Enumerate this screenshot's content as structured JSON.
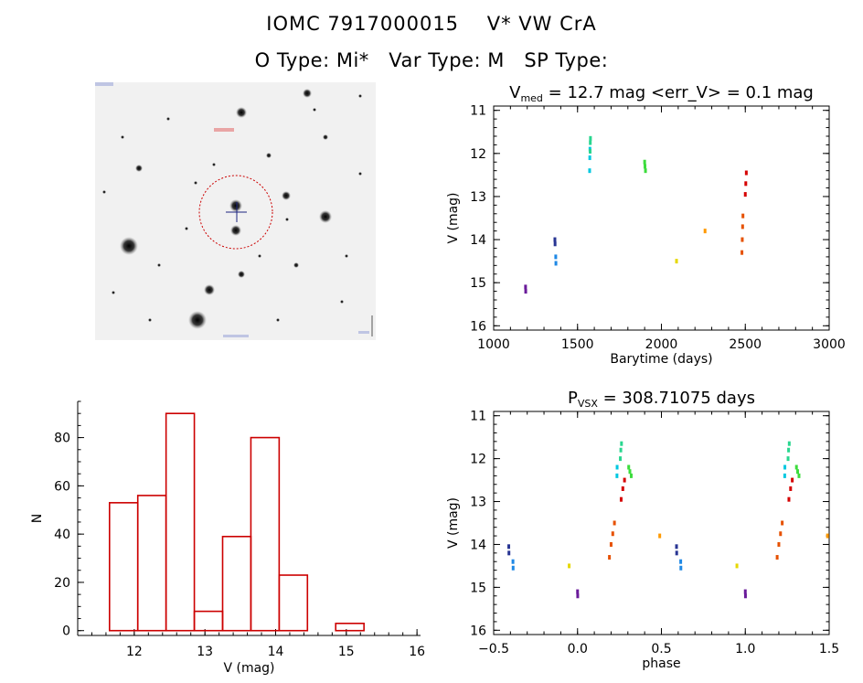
{
  "header": {
    "title_line1": "IOMC 7917000015    V* VW CrA",
    "title_line2": "O Type: Mi*   Var Type: M   SP Type:"
  },
  "image_panel": {
    "type": "sky-image",
    "colors": {
      "circle": "#cc0000",
      "cross": "#000080"
    }
  },
  "chart_data": [
    {
      "id": "lightcurve",
      "type": "scatter",
      "title_main": "V",
      "title_sub": "med",
      "title_rest": " = 12.7 mag <err_V> = 0.1 mag",
      "xlabel": "Barytime (days)",
      "ylabel": "V (mag)",
      "xlim": [
        1000,
        3000
      ],
      "ylim": [
        16.1,
        10.9
      ],
      "y_inverted": true,
      "xticks": [
        1000,
        1500,
        2000,
        2500,
        3000
      ],
      "yticks": [
        11,
        12,
        13,
        14,
        15,
        16
      ],
      "series": [
        {
          "color": "#6a1b9a",
          "points": [
            [
              1190,
              15.1
            ],
            [
              1191,
              15.2
            ]
          ]
        },
        {
          "color": "#283593",
          "points": [
            [
              1365,
              14.0
            ],
            [
              1366,
              14.1
            ]
          ]
        },
        {
          "color": "#1e88e5",
          "points": [
            [
              1370,
              14.4
            ],
            [
              1371,
              14.55
            ]
          ]
        },
        {
          "color": "#00c8e0",
          "points": [
            [
              1572,
              12.4
            ],
            [
              1573,
              12.1
            ],
            [
              1574,
              11.9
            ]
          ]
        },
        {
          "color": "#29d68f",
          "points": [
            [
              1575,
              11.95
            ],
            [
              1576,
              11.75
            ],
            [
              1577,
              11.65
            ]
          ]
        },
        {
          "color": "#3ddc3d",
          "points": [
            [
              1900,
              12.2
            ],
            [
              1902,
              12.3
            ],
            [
              1905,
              12.4
            ]
          ]
        },
        {
          "color": "#e6d800",
          "points": [
            [
              2090,
              14.5
            ]
          ]
        },
        {
          "color": "#ff9900",
          "points": [
            [
              2260,
              13.8
            ]
          ]
        },
        {
          "color": "#e65100",
          "points": [
            [
              2480,
              14.3
            ],
            [
              2482,
              14.0
            ],
            [
              2484,
              13.7
            ],
            [
              2486,
              13.45
            ]
          ]
        },
        {
          "color": "#d50000",
          "points": [
            [
              2500,
              12.95
            ],
            [
              2503,
              12.7
            ],
            [
              2506,
              12.45
            ]
          ]
        }
      ]
    },
    {
      "id": "histogram",
      "type": "bar",
      "xlabel": "V (mag)",
      "ylabel": "N",
      "xlim": [
        11.2,
        16.05
      ],
      "ylim": [
        -2,
        95
      ],
      "xticks": [
        12,
        13,
        14,
        15,
        16
      ],
      "yticks": [
        0,
        20,
        40,
        60,
        80
      ],
      "bin_edges": [
        11.65,
        12.05,
        12.45,
        12.85,
        13.25,
        13.65,
        14.05,
        14.45,
        14.85,
        15.25,
        15.65
      ],
      "counts": [
        53,
        56,
        90,
        8,
        39,
        80,
        23,
        0,
        3,
        0
      ],
      "color": "#cc0000"
    },
    {
      "id": "phased",
      "type": "scatter",
      "title_main": "P",
      "title_sub": "VSX",
      "title_rest": " = 308.71075 days",
      "xlabel": "phase",
      "ylabel": "V (mag)",
      "xlim": [
        -0.5,
        1.5
      ],
      "ylim": [
        16.1,
        10.9
      ],
      "y_inverted": true,
      "xticks": [
        -0.5,
        0.0,
        0.5,
        1.0,
        1.5
      ],
      "xtick_labels": [
        "−0.5",
        "0.0",
        "0.5",
        "1.0",
        "1.5"
      ],
      "yticks": [
        11,
        12,
        13,
        14,
        15,
        16
      ],
      "series": [
        {
          "color": "#6a1b9a",
          "points": [
            [
              0.0,
              15.1
            ],
            [
              0.001,
              15.2
            ],
            [
              1.0,
              15.1
            ],
            [
              1.001,
              15.2
            ]
          ]
        },
        {
          "color": "#283593",
          "points": [
            [
              -0.41,
              14.05
            ],
            [
              -0.409,
              14.2
            ],
            [
              0.59,
              14.05
            ],
            [
              0.591,
              14.2
            ]
          ]
        },
        {
          "color": "#1e88e5",
          "points": [
            [
              -0.385,
              14.4
            ],
            [
              -0.384,
              14.55
            ],
            [
              0.615,
              14.4
            ],
            [
              0.616,
              14.55
            ]
          ]
        },
        {
          "color": "#00c8e0",
          "points": [
            [
              0.235,
              12.4
            ],
            [
              0.236,
              12.2
            ],
            [
              1.235,
              12.4
            ],
            [
              1.236,
              12.2
            ]
          ]
        },
        {
          "color": "#29d68f",
          "points": [
            [
              0.255,
              12.0
            ],
            [
              0.258,
              11.8
            ],
            [
              0.262,
              11.65
            ],
            [
              1.255,
              12.0
            ],
            [
              1.258,
              11.8
            ],
            [
              1.262,
              11.65
            ]
          ]
        },
        {
          "color": "#3ddc3d",
          "points": [
            [
              0.305,
              12.2
            ],
            [
              0.312,
              12.3
            ],
            [
              0.32,
              12.4
            ],
            [
              1.305,
              12.2
            ],
            [
              1.312,
              12.3
            ],
            [
              1.32,
              12.4
            ]
          ]
        },
        {
          "color": "#e6d800",
          "points": [
            [
              -0.05,
              14.5
            ],
            [
              0.95,
              14.5
            ]
          ]
        },
        {
          "color": "#ff9900",
          "points": [
            [
              0.49,
              13.8
            ],
            [
              1.49,
              13.8
            ]
          ]
        },
        {
          "color": "#e65100",
          "points": [
            [
              0.19,
              14.3
            ],
            [
              0.2,
              14.0
            ],
            [
              0.21,
              13.75
            ],
            [
              0.22,
              13.5
            ],
            [
              1.19,
              14.3
            ],
            [
              1.2,
              14.0
            ],
            [
              1.21,
              13.75
            ],
            [
              1.22,
              13.5
            ]
          ]
        },
        {
          "color": "#d50000",
          "points": [
            [
              0.26,
              12.95
            ],
            [
              0.27,
              12.7
            ],
            [
              0.28,
              12.5
            ],
            [
              1.26,
              12.95
            ],
            [
              1.27,
              12.7
            ],
            [
              1.28,
              12.5
            ]
          ]
        }
      ]
    }
  ]
}
